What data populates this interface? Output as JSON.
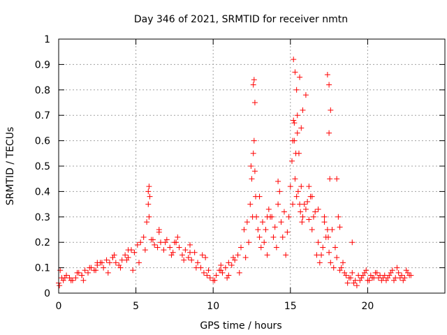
{
  "chart_data": {
    "type": "scatter",
    "title": "Day 346 of 2021, SRMTID for receiver nmtn",
    "xlabel": "GPS time / hours",
    "ylabel": "SRMTID / TECUs",
    "xlim": [
      0,
      25
    ],
    "ylim": [
      0,
      1
    ],
    "xticks": [
      0,
      5,
      10,
      15,
      20
    ],
    "xtick_labels": [
      "0",
      "5",
      "10",
      "15",
      "20"
    ],
    "yticks": [
      0,
      0.1,
      0.2,
      0.3,
      0.4,
      0.5,
      0.6,
      0.7,
      0.8,
      0.9,
      1
    ],
    "ytick_labels": [
      "0",
      "0.1",
      "0.2",
      "0.3",
      "0.4",
      "0.5",
      "0.6",
      "0.7",
      "0.8",
      "0.9",
      "1"
    ],
    "grid": true,
    "marker": "plus",
    "color": "#ff0000",
    "series": [
      {
        "name": "nmtn",
        "x": [
          0.0,
          0.1,
          0.2,
          0.3,
          0.5,
          0.7,
          0.9,
          1.1,
          1.3,
          1.5,
          1.7,
          1.9,
          2.1,
          2.3,
          2.5,
          2.7,
          2.9,
          3.1,
          3.3,
          3.5,
          3.7,
          3.9,
          4.1,
          4.3,
          4.5,
          4.7,
          4.9,
          5.1,
          5.3,
          5.5,
          5.7,
          5.8,
          5.85,
          5.9,
          6.0,
          6.2,
          6.4,
          6.6,
          6.8,
          7.0,
          7.2,
          7.4,
          7.6,
          7.8,
          8.0,
          8.2,
          8.4,
          8.6,
          8.8,
          9.0,
          9.2,
          9.4,
          9.6,
          9.8,
          10.0,
          10.2,
          10.4,
          10.6,
          10.8,
          11.0,
          11.2,
          11.4,
          11.6,
          11.8,
          12.0,
          12.2,
          12.4,
          12.5,
          12.6,
          12.65,
          12.7,
          12.8,
          13.0,
          13.2,
          13.4,
          13.6,
          13.8,
          14.0,
          14.2,
          14.4,
          14.6,
          14.8,
          15.0,
          15.1,
          15.2,
          15.25,
          15.3,
          15.4,
          15.5,
          15.6,
          15.7,
          15.8,
          16.0,
          16.2,
          16.4,
          16.6,
          16.8,
          17.0,
          17.2,
          17.4,
          17.45,
          17.5,
          17.6,
          17.8,
          18.0,
          18.2,
          18.4,
          18.6,
          18.8,
          19.0,
          19.2,
          19.4,
          19.6,
          19.8,
          20.0,
          20.2,
          20.4,
          20.6,
          20.8,
          21.0,
          21.2,
          21.4,
          21.6,
          21.8,
          22.0,
          22.2,
          22.4,
          22.6,
          22.8,
          0.05,
          0.4,
          0.8,
          1.2,
          1.6,
          2.0,
          2.4,
          2.8,
          3.2,
          3.6,
          4.0,
          4.4,
          4.8,
          5.2,
          5.6,
          6.1,
          6.5,
          6.9,
          7.3,
          7.7,
          8.1,
          8.5,
          8.9,
          9.3,
          9.7,
          10.1,
          10.5,
          10.9,
          11.3,
          11.7,
          12.1,
          12.3,
          12.55,
          12.75,
          12.9,
          13.1,
          13.3,
          13.5,
          13.7,
          13.9,
          14.1,
          14.3,
          14.5,
          14.7,
          14.9,
          15.15,
          15.35,
          15.45,
          15.55,
          15.65,
          15.75,
          15.9,
          16.1,
          16.3,
          16.5,
          16.7,
          16.9,
          17.1,
          17.3,
          17.55,
          17.7,
          17.9,
          18.1,
          18.3,
          18.5,
          18.7,
          18.9,
          19.1,
          19.3,
          19.5,
          19.7,
          19.9,
          20.1,
          20.3,
          20.5,
          20.7,
          20.9,
          21.1,
          21.3,
          21.5,
          21.7,
          21.9,
          22.1,
          22.3,
          22.5,
          22.7,
          12.45,
          12.6,
          12.7,
          15.2,
          15.3,
          15.4,
          15.6,
          15.8,
          16.0,
          17.4,
          17.5,
          17.6,
          18.0,
          16.2,
          15.45,
          12.65,
          17.5,
          5.8,
          5.85,
          15.15,
          15.25,
          15.7,
          14.2,
          13.0,
          13.5,
          16.4,
          16.8,
          17.2,
          18.2,
          19.0,
          11.0,
          10.5,
          9.5,
          8.5,
          7.5,
          6.5,
          4.5,
          3.5,
          2.5,
          1.5
        ],
        "y": [
          0.04,
          0.09,
          0.06,
          0.05,
          0.07,
          0.06,
          0.05,
          0.06,
          0.08,
          0.07,
          0.09,
          0.08,
          0.1,
          0.09,
          0.11,
          0.12,
          0.1,
          0.13,
          0.12,
          0.14,
          0.12,
          0.11,
          0.13,
          0.15,
          0.14,
          0.17,
          0.16,
          0.19,
          0.2,
          0.22,
          0.28,
          0.35,
          0.42,
          0.38,
          0.21,
          0.19,
          0.18,
          0.2,
          0.17,
          0.21,
          0.18,
          0.16,
          0.2,
          0.18,
          0.15,
          0.17,
          0.14,
          0.13,
          0.16,
          0.12,
          0.1,
          0.08,
          0.07,
          0.06,
          0.05,
          0.07,
          0.09,
          0.08,
          0.1,
          0.12,
          0.11,
          0.13,
          0.15,
          0.18,
          0.25,
          0.28,
          0.35,
          0.45,
          0.55,
          0.6,
          0.48,
          0.3,
          0.22,
          0.28,
          0.25,
          0.33,
          0.3,
          0.26,
          0.35,
          0.28,
          0.32,
          0.24,
          0.42,
          0.52,
          0.68,
          0.6,
          0.45,
          0.38,
          0.4,
          0.35,
          0.42,
          0.3,
          0.33,
          0.29,
          0.25,
          0.32,
          0.2,
          0.15,
          0.28,
          0.25,
          0.22,
          0.16,
          0.12,
          0.1,
          0.14,
          0.09,
          0.12,
          0.07,
          0.06,
          0.08,
          0.05,
          0.07,
          0.06,
          0.08,
          0.05,
          0.07,
          0.06,
          0.08,
          0.07,
          0.06,
          0.05,
          0.07,
          0.09,
          0.06,
          0.08,
          0.07,
          0.06,
          0.08,
          0.07,
          0.03,
          0.06,
          0.05,
          0.08,
          0.05,
          0.1,
          0.09,
          0.12,
          0.08,
          0.15,
          0.1,
          0.13,
          0.09,
          0.12,
          0.17,
          0.21,
          0.24,
          0.2,
          0.15,
          0.22,
          0.13,
          0.19,
          0.1,
          0.15,
          0.09,
          0.05,
          0.11,
          0.06,
          0.14,
          0.08,
          0.14,
          0.2,
          0.3,
          0.38,
          0.25,
          0.18,
          0.2,
          0.15,
          0.3,
          0.22,
          0.18,
          0.4,
          0.22,
          0.15,
          0.3,
          0.35,
          0.55,
          0.63,
          0.55,
          0.32,
          0.28,
          0.35,
          0.36,
          0.38,
          0.3,
          0.15,
          0.12,
          0.18,
          0.22,
          0.45,
          0.25,
          0.18,
          0.3,
          0.1,
          0.08,
          0.04,
          0.06,
          0.04,
          0.03,
          0.05,
          0.07,
          0.09,
          0.05,
          0.06,
          0.08,
          0.06,
          0.05,
          0.07,
          0.06,
          0.08,
          0.05,
          0.1,
          0.06,
          0.05,
          0.09,
          0.07,
          0.5,
          0.82,
          0.75,
          0.92,
          0.87,
          0.8,
          0.85,
          0.72,
          0.78,
          0.86,
          0.82,
          0.72,
          0.45,
          0.42,
          0.7,
          0.84,
          0.63,
          0.4,
          0.3,
          0.6,
          0.67,
          0.65,
          0.44,
          0.38,
          0.3,
          0.38,
          0.33,
          0.3,
          0.26,
          0.2,
          0.07,
          0.09,
          0.14,
          0.16,
          0.2,
          0.25,
          0.17,
          0.14,
          0.12,
          0.07
        ]
      }
    ]
  }
}
